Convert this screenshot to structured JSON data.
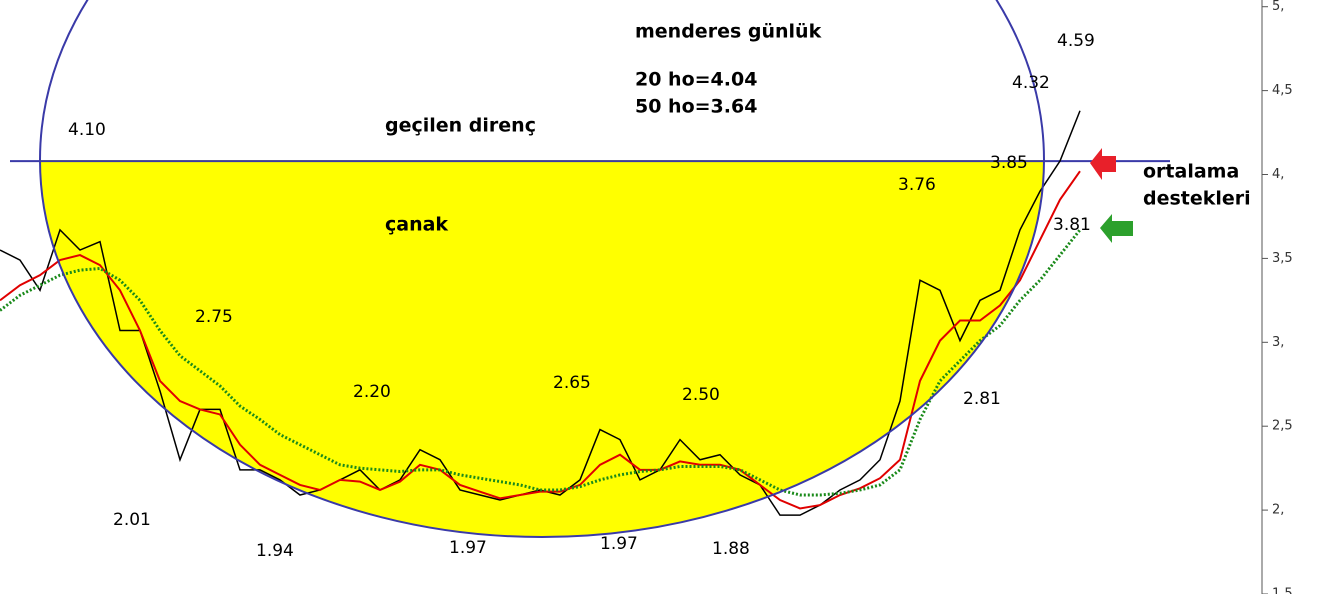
{
  "chart_data": {
    "type": "line",
    "annotations": [
      "menderes günlük",
      "20 ho=4.04",
      "50 ho=3.64",
      "geçilen direnç",
      "çanak",
      "ortalama",
      "destekleri",
      "4.10",
      "2.75",
      "2.01",
      "1.94",
      "2.20",
      "1.97",
      "2.65",
      "1.97",
      "2.50",
      "1.88",
      "3.76",
      "3.85",
      "4.32",
      "4.59",
      "3.81",
      "2.81"
    ],
    "ylim": [
      1.5,
      5.04
    ],
    "yticks": [
      {
        "value": 5,
        "label": "5,"
      },
      {
        "value": 4.5,
        "label": "4,5"
      },
      {
        "value": 4,
        "label": "4,"
      },
      {
        "value": 3.5,
        "label": "3,5"
      },
      {
        "value": 3,
        "label": "3,"
      },
      {
        "value": 2.5,
        "label": "2,5"
      },
      {
        "value": 2,
        "label": "2,"
      },
      {
        "value": 1.5,
        "label": "1,5"
      }
    ],
    "resistance": 4.08,
    "series": [
      {
        "color": "#000000",
        "values": [
          3.55,
          3.49,
          3.31,
          3.67,
          3.55,
          3.6,
          3.07,
          3.07,
          2.71,
          2.3,
          2.6,
          2.6,
          2.24,
          2.24,
          2.18,
          2.09,
          2.12,
          2.18,
          2.24,
          2.12,
          2.18,
          2.36,
          2.3,
          2.12,
          2.09,
          2.06,
          2.09,
          2.12,
          2.09,
          2.18,
          2.48,
          2.42,
          2.18,
          2.24,
          2.42,
          2.3,
          2.33,
          2.21,
          2.15,
          1.97,
          1.97,
          2.03,
          2.12,
          2.18,
          2.3,
          2.65,
          3.37,
          3.31,
          3.01,
          3.25,
          3.31,
          3.67,
          3.9,
          4.08,
          4.38
        ]
      },
      {
        "color": "#e00000",
        "values": [
          3.25,
          3.34,
          3.4,
          3.49,
          3.52,
          3.46,
          3.31,
          3.07,
          2.77,
          2.65,
          2.6,
          2.57,
          2.39,
          2.27,
          2.21,
          2.15,
          2.12,
          2.18,
          2.17,
          2.12,
          2.17,
          2.27,
          2.24,
          2.15,
          2.11,
          2.07,
          2.09,
          2.11,
          2.11,
          2.15,
          2.27,
          2.33,
          2.24,
          2.24,
          2.29,
          2.27,
          2.27,
          2.24,
          2.15,
          2.06,
          2.01,
          2.03,
          2.09,
          2.13,
          2.19,
          2.3,
          2.77,
          3.01,
          3.13,
          3.13,
          3.22,
          3.37,
          3.61,
          3.85,
          4.02
        ]
      },
      {
        "color": "#1a8a1a",
        "values": [
          3.19,
          3.28,
          3.34,
          3.4,
          3.43,
          3.44,
          3.37,
          3.25,
          3.07,
          2.92,
          2.83,
          2.74,
          2.62,
          2.54,
          2.45,
          2.39,
          2.33,
          2.27,
          2.25,
          2.24,
          2.23,
          2.24,
          2.24,
          2.21,
          2.19,
          2.17,
          2.15,
          2.12,
          2.12,
          2.14,
          2.18,
          2.21,
          2.23,
          2.24,
          2.26,
          2.26,
          2.26,
          2.24,
          2.18,
          2.12,
          2.09,
          2.09,
          2.1,
          2.12,
          2.15,
          2.24,
          2.54,
          2.77,
          2.89,
          3.01,
          3.1,
          3.25,
          3.37,
          3.52,
          3.67
        ]
      }
    ]
  }
}
